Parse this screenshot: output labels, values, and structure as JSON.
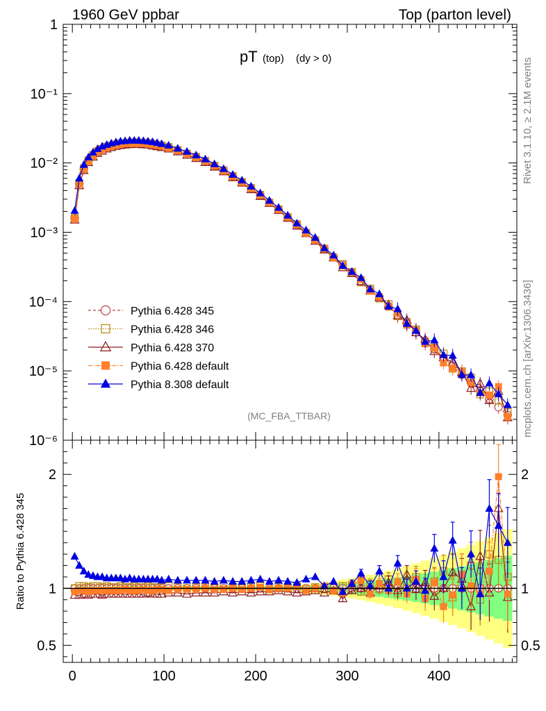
{
  "header": {
    "left_label": "1960 GeV ppbar",
    "right_label": "Top (parton level)"
  },
  "side_labels": {
    "rivet": "Rivet 3.1.10, ≥ 2.1M events",
    "mcplots": "mcplots.cern.ch [arXiv:1306.3436]"
  },
  "plot_title": {
    "main": "pT",
    "sub1": "(top)",
    "sub2": "(dy > 0)"
  },
  "analysis_tag": "(MC_FBA_TTBAR)",
  "colors": {
    "p345": "#bf4040",
    "p346": "#b8860b",
    "p370": "#8b1a1a",
    "p6def": "#ff7f2a",
    "p8def": "#0000e0",
    "band_yellow": "#ffff80",
    "band_green": "#80ff80"
  },
  "chart_data": [
    {
      "type": "scatter",
      "panel": "main",
      "yscale": "log",
      "ylim": [
        1e-06,
        1
      ],
      "xlim": [
        -10,
        485
      ],
      "y_tick_labels": [
        "1",
        "10⁻¹",
        "10⁻²",
        "10⁻³",
        "10⁻⁴",
        "10⁻⁵",
        "10⁻⁶"
      ],
      "legend_position": "lower-left",
      "series": [
        {
          "name": "Pythia 6.428 345",
          "key": "p345",
          "marker": "open-circle",
          "line": "dashed",
          "scale": 1.0
        },
        {
          "name": "Pythia 6.428 346",
          "key": "p346",
          "marker": "open-square",
          "line": "dotted",
          "scale": 1.02
        },
        {
          "name": "Pythia 6.428 370",
          "key": "p370",
          "marker": "open-triangle",
          "line": "solid",
          "scale": 0.95
        },
        {
          "name": "Pythia 6.428 default",
          "key": "p6def",
          "marker": "filled-square",
          "line": "dashdot",
          "scale": 0.99
        },
        {
          "name": "Pythia 8.308 default",
          "key": "p8def",
          "marker": "filled-triangle",
          "line": "solid",
          "scale": 1.08
        }
      ],
      "x": [
        2.5,
        7.5,
        12.5,
        17.5,
        22.5,
        27.5,
        32.5,
        37.5,
        42.5,
        47.5,
        52.5,
        57.5,
        62.5,
        67.5,
        72.5,
        77.5,
        82.5,
        87.5,
        92.5,
        97.5,
        105,
        115,
        125,
        135,
        145,
        155,
        165,
        175,
        185,
        195,
        205,
        215,
        225,
        235,
        245,
        255,
        265,
        275,
        285,
        295,
        305,
        315,
        325,
        335,
        345,
        355,
        365,
        375,
        385,
        395,
        405,
        415,
        425,
        435,
        445,
        455,
        465,
        475
      ],
      "y_reference": [
        0.0016,
        0.005,
        0.0082,
        0.0108,
        0.0128,
        0.0145,
        0.0158,
        0.0168,
        0.0176,
        0.0183,
        0.0188,
        0.0192,
        0.0194,
        0.0195,
        0.0195,
        0.0193,
        0.019,
        0.0186,
        0.0181,
        0.0176,
        0.0166,
        0.0151,
        0.0136,
        0.0121,
        0.0106,
        0.0091,
        0.0077,
        0.0064,
        0.0053,
        0.0043,
        0.0034,
        0.0027,
        0.00212,
        0.00165,
        0.00128,
        0.00099,
        0.00076,
        0.00058,
        0.00044,
        0.00034,
        0.00026,
        0.000195,
        0.000148,
        0.000112,
        8.5e-05,
        6.4e-05,
        4.8e-05,
        3.6e-05,
        2.7e-05,
        2.05e-05,
        1.55e-05,
        1.17e-05,
        8.8e-06,
        6.7e-06,
        5.1e-06,
        3.9e-06,
        3e-06,
        2.3e-06
      ]
    },
    {
      "type": "scatter",
      "panel": "ratio",
      "ylabel": "Ratio to Pythia 6.428 345",
      "ylim": [
        0.35,
        2.3
      ],
      "y_tick_labels": [
        "0.5",
        "1",
        "2"
      ],
      "x_tick_labels": [
        "0",
        "100",
        "200",
        "300",
        "400"
      ],
      "xlim": [
        -10,
        485
      ],
      "series": [
        {
          "name": "Pythia 6.428 346",
          "key": "p346",
          "values": [
            1.0,
            1.02,
            1.02,
            1.01,
            1.02,
            1.02,
            1.01,
            1.02,
            1.01,
            1.01,
            1.02,
            1.01,
            1.01,
            1.02,
            1.01,
            1.01,
            1.02,
            1.01,
            1.01,
            1.01,
            1.02,
            1.01,
            1.0,
            1.01,
            1.01,
            1.0,
            1.02,
            1.01,
            1.0,
            1.01,
            1.02,
            0.99,
            1.01,
            1.0,
            1.02,
            0.99,
            1.01,
            1.0,
            0.98,
            1.02,
            1.03,
            0.97,
            1.04,
            0.99,
            1.08,
            0.96,
            1.05,
            1.1,
            0.95,
            1.06,
            1.15,
            0.92,
            1.12,
            1.2,
            0.9,
            1.3,
            1.25,
            1.1
          ]
        },
        {
          "name": "Pythia 6.428 370",
          "key": "p370",
          "values": [
            0.94,
            0.94,
            0.95,
            0.94,
            0.95,
            0.95,
            0.94,
            0.95,
            0.95,
            0.95,
            0.95,
            0.95,
            0.95,
            0.95,
            0.95,
            0.95,
            0.96,
            0.95,
            0.95,
            0.95,
            0.96,
            0.96,
            0.95,
            0.96,
            0.96,
            0.96,
            0.97,
            0.96,
            0.97,
            0.96,
            0.97,
            0.97,
            0.98,
            0.97,
            0.96,
            0.97,
            0.98,
            0.96,
            0.98,
            0.91,
            0.98,
            1.0,
            0.96,
            1.02,
            1.05,
            0.98,
            1.12,
            0.99,
            1.05,
            0.93,
            1.0,
            1.14,
            1.08,
            0.84,
            1.28,
            0.96,
            1.7,
            0.92
          ]
        },
        {
          "name": "Pythia 6.428 default",
          "key": "p6def",
          "values": [
            0.97,
            0.98,
            0.98,
            0.97,
            0.98,
            0.98,
            0.98,
            0.98,
            0.98,
            0.98,
            0.98,
            0.99,
            0.98,
            0.98,
            0.98,
            0.99,
            0.98,
            0.98,
            0.99,
            0.99,
            0.98,
            0.99,
            0.99,
            0.99,
            1.0,
            0.99,
            0.99,
            1.0,
            0.99,
            1.0,
            1.01,
            0.99,
            1.0,
            1.0,
            1.02,
            0.98,
            1.0,
            1.02,
            0.98,
            0.96,
            1.03,
            1.07,
            0.95,
            1.04,
            0.98,
            1.06,
            0.95,
            1.08,
            0.91,
            1.05,
            0.84,
            0.94,
            1.12,
            1.02,
            0.95,
            1.15,
            1.98,
            0.95
          ]
        },
        {
          "name": "Pythia 8.308 default",
          "key": "p8def",
          "values": [
            1.28,
            1.2,
            1.15,
            1.12,
            1.11,
            1.1,
            1.1,
            1.09,
            1.09,
            1.09,
            1.09,
            1.08,
            1.09,
            1.08,
            1.08,
            1.08,
            1.08,
            1.08,
            1.08,
            1.07,
            1.08,
            1.07,
            1.07,
            1.07,
            1.07,
            1.06,
            1.07,
            1.06,
            1.06,
            1.07,
            1.08,
            1.06,
            1.07,
            1.06,
            1.05,
            1.08,
            1.1,
            1.02,
            1.06,
            0.97,
            1.04,
            1.13,
            1.02,
            1.15,
            1.0,
            1.22,
            1.0,
            1.06,
            0.98,
            1.35,
            1.1,
            1.42,
            1.0,
            1.3,
            0.95,
            1.7,
            1.55,
            1.4
          ]
        }
      ]
    }
  ]
}
